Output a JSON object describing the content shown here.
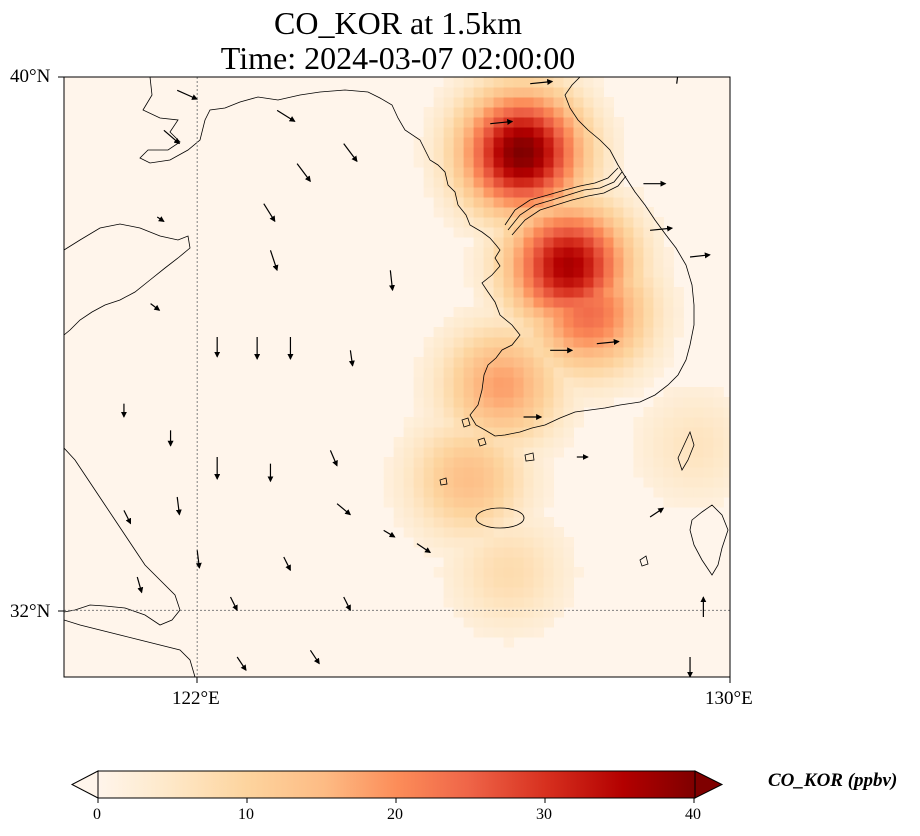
{
  "title": {
    "line1": "CO_KOR at 1.5km",
    "line2": "Time: 2024-03-07 02:00:00"
  },
  "map": {
    "projection": "PlateCarree",
    "extent": {
      "lon_min": 120.0,
      "lon_max": 130.0,
      "lat_min": 31.0,
      "lat_max": 40.0
    },
    "gridlines": {
      "lons": [
        122,
        130
      ],
      "lats": [
        32,
        40
      ],
      "style": "dotted",
      "color": "#808080"
    },
    "lat_labels": [
      "40°N",
      "32°N"
    ],
    "lon_labels": [
      "122°E",
      "130°E"
    ],
    "background_color": "#fff5eb",
    "coastline_color": "#000000",
    "field": {
      "variable": "CO_KOR",
      "units": "ppbv",
      "level": "1.5km",
      "hotspots": [
        {
          "lon": 126.8,
          "lat": 38.8,
          "value": 40
        },
        {
          "lon": 127.5,
          "lat": 37.1,
          "value": 36
        },
        {
          "lon": 127.8,
          "lat": 36.4,
          "value": 24
        },
        {
          "lon": 126.5,
          "lat": 35.3,
          "value": 18
        },
        {
          "lon": 126.0,
          "lat": 33.9,
          "value": 14
        },
        {
          "lon": 126.6,
          "lat": 32.5,
          "value": 8
        },
        {
          "lon": 129.4,
          "lat": 34.4,
          "value": 6
        }
      ]
    },
    "wind_vectors": [
      {
        "lon": 121.7,
        "lat": 39.8,
        "u": 0.9,
        "v": -0.4
      },
      {
        "lon": 123.2,
        "lat": 39.5,
        "u": 0.8,
        "v": -0.5
      },
      {
        "lon": 121.5,
        "lat": 39.2,
        "u": 0.7,
        "v": -0.6
      },
      {
        "lon": 124.2,
        "lat": 39.0,
        "u": 0.6,
        "v": -0.8
      },
      {
        "lon": 123.5,
        "lat": 38.7,
        "u": 0.6,
        "v": -0.8
      },
      {
        "lon": 123.0,
        "lat": 38.1,
        "u": 0.5,
        "v": -0.8
      },
      {
        "lon": 121.4,
        "lat": 37.9,
        "u": 0.3,
        "v": -0.2
      },
      {
        "lon": 123.1,
        "lat": 37.4,
        "u": 0.3,
        "v": -0.9
      },
      {
        "lon": 124.9,
        "lat": 37.1,
        "u": 0.1,
        "v": -0.9
      },
      {
        "lon": 121.3,
        "lat": 36.6,
        "u": 0.4,
        "v": -0.3
      },
      {
        "lon": 122.3,
        "lat": 36.1,
        "u": 0.0,
        "v": -0.9
      },
      {
        "lon": 122.9,
        "lat": 36.1,
        "u": 0.0,
        "v": -1.0
      },
      {
        "lon": 123.4,
        "lat": 36.1,
        "u": 0.0,
        "v": -1.0
      },
      {
        "lon": 124.3,
        "lat": 35.9,
        "u": 0.1,
        "v": -0.7
      },
      {
        "lon": 120.9,
        "lat": 35.1,
        "u": 0.0,
        "v": -0.6
      },
      {
        "lon": 121.6,
        "lat": 34.7,
        "u": 0.0,
        "v": -0.7
      },
      {
        "lon": 122.3,
        "lat": 34.3,
        "u": 0.0,
        "v": -1.0
      },
      {
        "lon": 123.1,
        "lat": 34.2,
        "u": 0.0,
        "v": -0.8
      },
      {
        "lon": 124.0,
        "lat": 34.4,
        "u": 0.3,
        "v": -0.7
      },
      {
        "lon": 124.1,
        "lat": 33.6,
        "u": 0.6,
        "v": -0.5
      },
      {
        "lon": 124.8,
        "lat": 33.2,
        "u": 0.5,
        "v": -0.3
      },
      {
        "lon": 120.9,
        "lat": 33.5,
        "u": 0.3,
        "v": -0.6
      },
      {
        "lon": 121.7,
        "lat": 33.7,
        "u": 0.1,
        "v": -0.8
      },
      {
        "lon": 122.0,
        "lat": 32.9,
        "u": 0.1,
        "v": -0.8
      },
      {
        "lon": 122.5,
        "lat": 32.2,
        "u": 0.3,
        "v": -0.6
      },
      {
        "lon": 123.3,
        "lat": 32.8,
        "u": 0.3,
        "v": -0.6
      },
      {
        "lon": 124.2,
        "lat": 32.2,
        "u": 0.3,
        "v": -0.6
      },
      {
        "lon": 123.7,
        "lat": 31.4,
        "u": 0.4,
        "v": -0.6
      },
      {
        "lon": 122.6,
        "lat": 31.3,
        "u": 0.4,
        "v": -0.6
      },
      {
        "lon": 121.1,
        "lat": 32.5,
        "u": 0.2,
        "v": -0.7
      },
      {
        "lon": 125.3,
        "lat": 33.0,
        "u": 0.6,
        "v": -0.4
      },
      {
        "lon": 126.4,
        "lat": 39.3,
        "u": 1.0,
        "v": 0.1
      },
      {
        "lon": 127.0,
        "lat": 39.9,
        "u": 1.0,
        "v": 0.1
      },
      {
        "lon": 128.7,
        "lat": 38.4,
        "u": 1.0,
        "v": 0.0
      },
      {
        "lon": 128.8,
        "lat": 37.7,
        "u": 1.0,
        "v": 0.1
      },
      {
        "lon": 129.4,
        "lat": 37.3,
        "u": 0.9,
        "v": 0.1
      },
      {
        "lon": 127.3,
        "lat": 35.9,
        "u": 1.0,
        "v": 0.0
      },
      {
        "lon": 128.0,
        "lat": 36.0,
        "u": 1.0,
        "v": 0.1
      },
      {
        "lon": 126.9,
        "lat": 34.9,
        "u": 0.8,
        "v": 0.0
      },
      {
        "lon": 127.7,
        "lat": 34.3,
        "u": 0.5,
        "v": 0.0
      },
      {
        "lon": 129.2,
        "lat": 39.9,
        "u": 0.1,
        "v": 0.8
      },
      {
        "lon": 128.8,
        "lat": 33.4,
        "u": 0.6,
        "v": 0.4
      },
      {
        "lon": 129.6,
        "lat": 31.9,
        "u": 0.0,
        "v": 0.9
      },
      {
        "lon": 129.4,
        "lat": 31.3,
        "u": 0.0,
        "v": -0.9
      }
    ]
  },
  "colorbar": {
    "label": "CO_KOR (ppbv)",
    "cmap": "OrRd",
    "min": 0,
    "max": 40,
    "extend": "both",
    "ticks": [
      "0",
      "10",
      "20",
      "30",
      "40"
    ],
    "colors": [
      "#fff5eb",
      "#fee6ce",
      "#fdd0a2",
      "#fdae6b",
      "#fd8d3c",
      "#f16913",
      "#d94801",
      "#a63603",
      "#7f0000"
    ]
  }
}
